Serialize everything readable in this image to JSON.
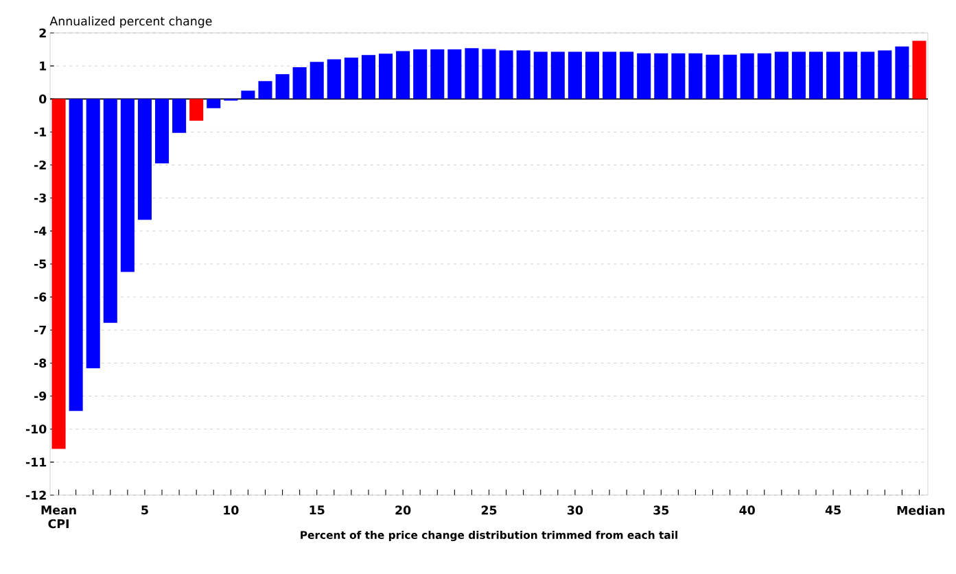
{
  "chart_data": {
    "type": "bar",
    "ylabel": "Annualized percent change",
    "xlabel": "Percent of the price change distribution trimmed from each tail",
    "categories": [
      "Mean CPI",
      null,
      null,
      null,
      null,
      "5",
      null,
      null,
      null,
      null,
      "10",
      null,
      null,
      null,
      null,
      "15",
      null,
      null,
      null,
      null,
      "20",
      null,
      null,
      null,
      null,
      "25",
      null,
      null,
      null,
      null,
      "30",
      null,
      null,
      null,
      null,
      "35",
      null,
      null,
      null,
      null,
      "40",
      null,
      null,
      null,
      null,
      "45",
      null,
      null,
      null,
      null,
      "Median"
    ],
    "values": [
      -10.6,
      -9.45,
      -8.16,
      -6.78,
      -5.24,
      -3.66,
      -1.95,
      -1.03,
      -0.66,
      -0.28,
      -0.05,
      0.25,
      0.54,
      0.75,
      0.96,
      1.12,
      1.2,
      1.25,
      1.33,
      1.37,
      1.45,
      1.5,
      1.5,
      1.5,
      1.54,
      1.51,
      1.47,
      1.47,
      1.43,
      1.43,
      1.43,
      1.43,
      1.43,
      1.43,
      1.38,
      1.38,
      1.38,
      1.38,
      1.34,
      1.34,
      1.38,
      1.38,
      1.43,
      1.43,
      1.43,
      1.43,
      1.43,
      1.43,
      1.47,
      1.59,
      1.76
    ],
    "colors": [
      "#ff0000",
      "#0000ff",
      "#0000ff",
      "#0000ff",
      "#0000ff",
      "#0000ff",
      "#0000ff",
      "#0000ff",
      "#ff0000",
      "#0000ff",
      "#0000ff",
      "#0000ff",
      "#0000ff",
      "#0000ff",
      "#0000ff",
      "#0000ff",
      "#0000ff",
      "#0000ff",
      "#0000ff",
      "#0000ff",
      "#0000ff",
      "#0000ff",
      "#0000ff",
      "#0000ff",
      "#0000ff",
      "#0000ff",
      "#0000ff",
      "#0000ff",
      "#0000ff",
      "#0000ff",
      "#0000ff",
      "#0000ff",
      "#0000ff",
      "#0000ff",
      "#0000ff",
      "#0000ff",
      "#0000ff",
      "#0000ff",
      "#0000ff",
      "#0000ff",
      "#0000ff",
      "#0000ff",
      "#0000ff",
      "#0000ff",
      "#0000ff",
      "#0000ff",
      "#0000ff",
      "#0000ff",
      "#0000ff",
      "#0000ff",
      "#ff0000"
    ],
    "ylim": [
      -12,
      2
    ],
    "yticks": [
      -12,
      -11,
      -10,
      -9,
      -8,
      -7,
      -6,
      -5,
      -4,
      -3,
      -2,
      -1,
      0,
      1,
      2
    ],
    "grid": "y",
    "ref_lines": [
      {
        "axis": "y",
        "value": 0,
        "color": "#000000"
      }
    ]
  }
}
